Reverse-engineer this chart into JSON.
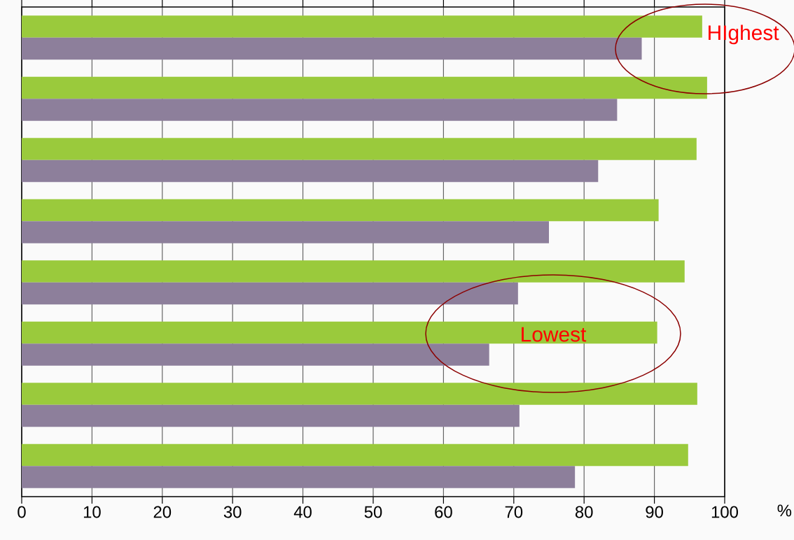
{
  "chart_data": {
    "type": "bar",
    "orientation": "horizontal",
    "xlabel": "%",
    "categories": [
      null,
      null,
      null,
      null,
      null,
      null,
      null,
      null
    ],
    "series": [
      {
        "color": "#9aca3c",
        "values": [
          96.8,
          97.5,
          96.0,
          90.6,
          94.3,
          90.4,
          96.1,
          94.8
        ]
      },
      {
        "color": "#8d7f9b",
        "values": [
          88.2,
          84.7,
          82.0,
          75.0,
          70.6,
          66.5,
          70.8,
          78.7
        ]
      }
    ],
    "xlim": [
      0,
      100
    ],
    "xticks": [
      0,
      10,
      20,
      30,
      40,
      50,
      60,
      70,
      80,
      90,
      100
    ],
    "grid": "x",
    "annotations": [
      "HIghest",
      "Lowest"
    ]
  }
}
